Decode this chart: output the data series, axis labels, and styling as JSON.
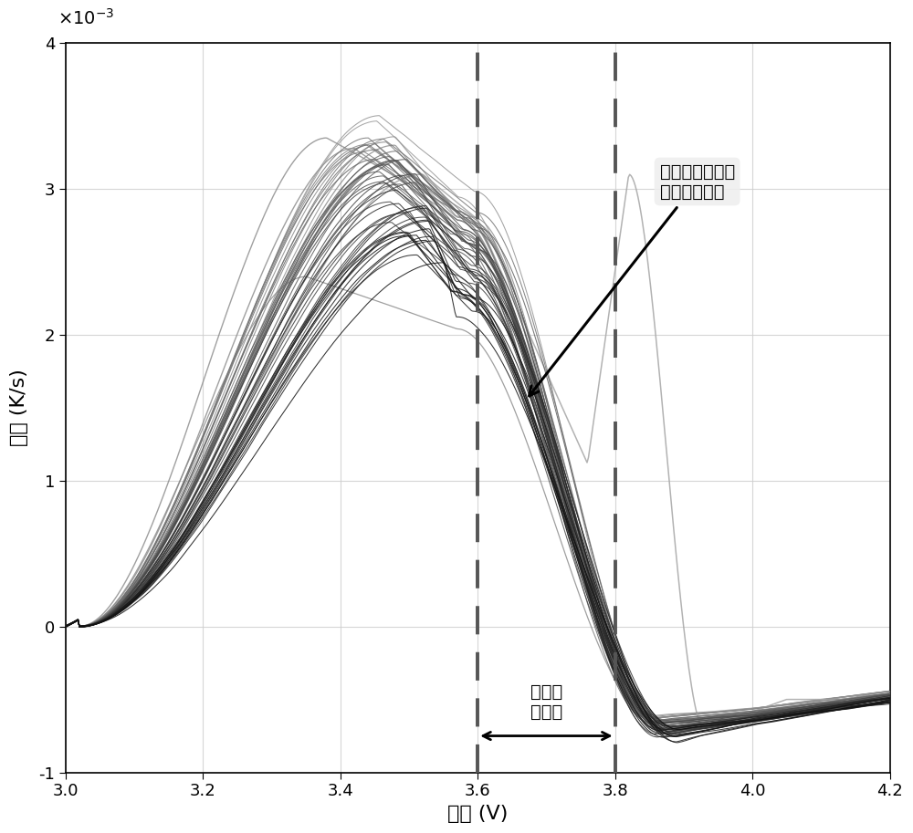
{
  "xlabel": "电压 (V)",
  "ylabel": "温升 (K/s)",
  "xlim": [
    3.0,
    4.2
  ],
  "ylim": [
    -0.001,
    0.004
  ],
  "yticks": [
    -0.001,
    0,
    0.001,
    0.002,
    0.003,
    0.004
  ],
  "xticks": [
    3.0,
    3.2,
    3.4,
    3.6,
    3.8,
    4.0,
    4.2
  ],
  "vline1": 3.6,
  "vline2": 3.8,
  "annotation1_text": "温升曲线随容量\n衰退变化方向",
  "annotation2_text": "容量敏\n感区间",
  "num_curves": 50,
  "background_color": "#ffffff"
}
